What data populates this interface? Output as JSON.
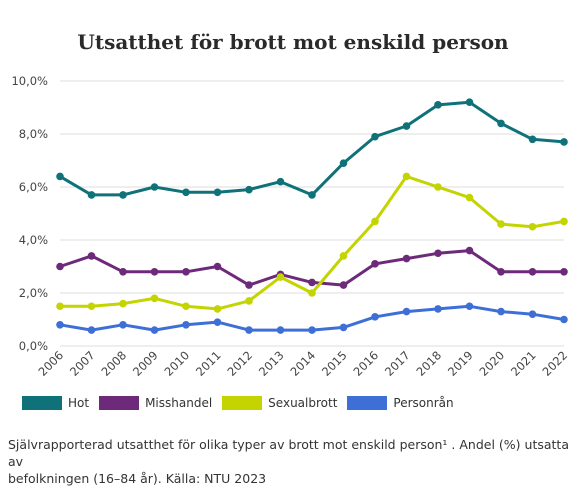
{
  "title": "Utsatthet för brott mot enskild person",
  "caption_line1": "Självrapporterad utsatthet för olika typer av brott mot enskild person¹ . Andel (%) utsatta av",
  "caption_line2": "befolkningen (16–84 år). Källa: NTU 2023",
  "chart_data": {
    "type": "line",
    "title": "Utsatthet för brott mot enskild person",
    "x": [
      "2006",
      "2007",
      "2008",
      "2009",
      "2010",
      "2011",
      "2012",
      "2013",
      "2014",
      "2015",
      "2016",
      "2017",
      "2018",
      "2019",
      "2020",
      "2021",
      "2022"
    ],
    "ylim": [
      0,
      10
    ],
    "yticks": [
      "0,0%",
      "2,0%",
      "4,0%",
      "6,0%",
      "8,0%",
      "10,0%"
    ],
    "grid": true,
    "legend_position": "bottom",
    "series": [
      {
        "name": "Hot",
        "color": "#0e7278",
        "values": [
          6.4,
          5.7,
          5.7,
          6.0,
          5.8,
          5.8,
          5.9,
          6.2,
          5.7,
          6.9,
          7.9,
          8.3,
          9.1,
          9.2,
          8.4,
          7.8,
          7.7
        ]
      },
      {
        "name": "Misshandel",
        "color": "#6e2a7a",
        "values": [
          3.0,
          3.4,
          2.8,
          2.8,
          2.8,
          3.0,
          2.3,
          2.7,
          2.4,
          2.3,
          3.1,
          3.3,
          3.5,
          3.6,
          2.8,
          2.8,
          2.8
        ]
      },
      {
        "name": "Sexualbrott",
        "color": "#c3d400",
        "values": [
          1.5,
          1.5,
          1.6,
          1.8,
          1.5,
          1.4,
          1.7,
          2.6,
          2.0,
          3.4,
          4.7,
          6.4,
          6.0,
          5.6,
          4.6,
          4.5,
          4.7
        ]
      },
      {
        "name": "Personrån",
        "color": "#3e6fd6",
        "values": [
          0.8,
          0.6,
          0.8,
          0.6,
          0.8,
          0.9,
          0.6,
          0.6,
          0.6,
          0.7,
          1.1,
          1.3,
          1.4,
          1.5,
          1.3,
          1.2,
          1.0
        ]
      }
    ]
  }
}
